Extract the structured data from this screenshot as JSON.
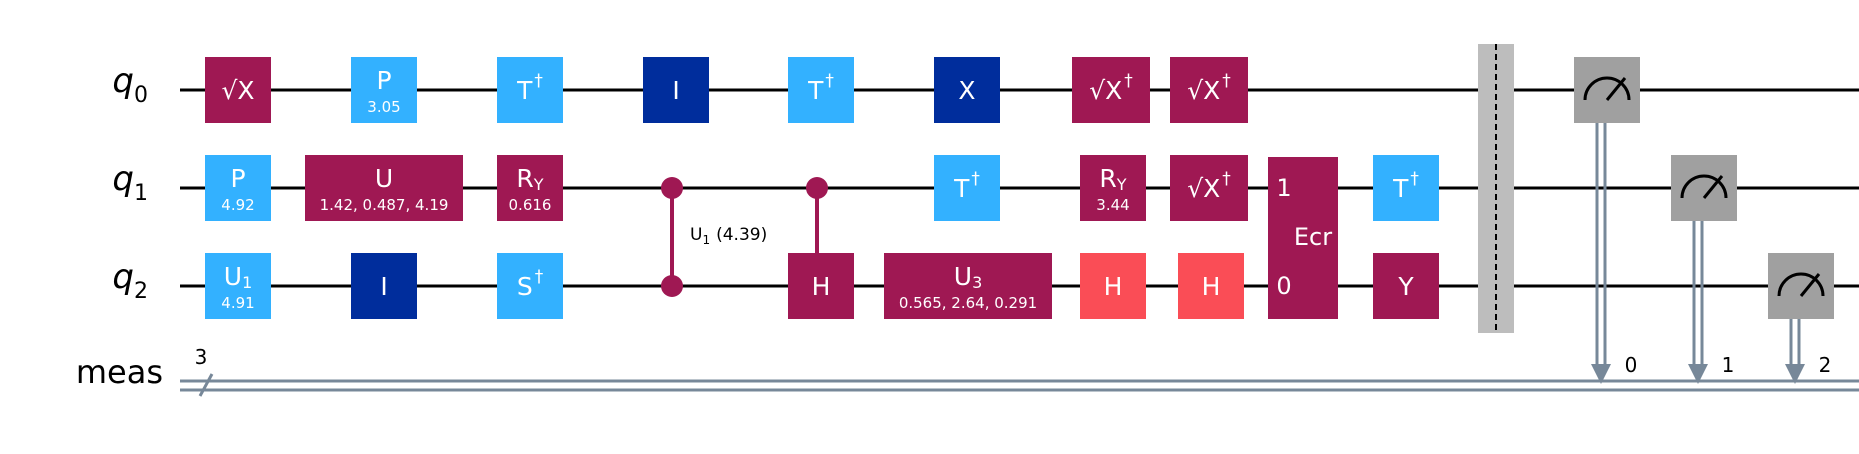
{
  "colors": {
    "magenta": "#9F1853",
    "lightblue": "#33B1FF",
    "darkblue": "#002D9C",
    "red": "#FA4D56",
    "gray": "#A0A0A0",
    "barrier": "#BDBDBD",
    "classical": "#778899"
  },
  "qubits": [
    {
      "label": "q",
      "sub": "0"
    },
    {
      "label": "q",
      "sub": "1"
    },
    {
      "label": "q",
      "sub": "2"
    }
  ],
  "classical_register": {
    "label": "meas",
    "width": "3"
  },
  "gates": [
    {
      "id": "sx-q0",
      "wire": 0,
      "color": "magenta",
      "text": "√X",
      "sup": ""
    },
    {
      "id": "p-q0",
      "wire": 0,
      "color": "lightblue",
      "text": "P",
      "param": "3.05"
    },
    {
      "id": "tdg-q0-a",
      "wire": 0,
      "color": "lightblue",
      "text": "T",
      "sup": "†"
    },
    {
      "id": "id-q0",
      "wire": 0,
      "color": "darkblue",
      "text": "I"
    },
    {
      "id": "tdg-q0-b",
      "wire": 0,
      "color": "lightblue",
      "text": "T",
      "sup": "†"
    },
    {
      "id": "x-q0",
      "wire": 0,
      "color": "darkblue",
      "text": "X"
    },
    {
      "id": "sxdg-q0-a",
      "wire": 0,
      "color": "magenta",
      "text": "√X",
      "sup": "†"
    },
    {
      "id": "sxdg-q0-b",
      "wire": 0,
      "color": "magenta",
      "text": "√X",
      "sup": "†"
    },
    {
      "id": "p-q1",
      "wire": 1,
      "color": "lightblue",
      "text": "P",
      "param": "4.92"
    },
    {
      "id": "u-q1",
      "wire": 1,
      "color": "magenta",
      "text": "U",
      "param": "1.42, 0.487, 4.19"
    },
    {
      "id": "ry-q1-a",
      "wire": 1,
      "color": "magenta",
      "text": "R",
      "sub": "Y",
      "param": "0.616"
    },
    {
      "id": "tdg-q1-a",
      "wire": 1,
      "color": "lightblue",
      "text": "T",
      "sup": "†"
    },
    {
      "id": "ry-q1-b",
      "wire": 1,
      "color": "magenta",
      "text": "R",
      "sub": "Y",
      "param": "3.44"
    },
    {
      "id": "sxdg-q1",
      "wire": 1,
      "color": "magenta",
      "text": "√X",
      "sup": "†"
    },
    {
      "id": "tdg-q1-b",
      "wire": 1,
      "color": "lightblue",
      "text": "T",
      "sup": "†"
    },
    {
      "id": "u1-q2",
      "wire": 2,
      "color": "lightblue",
      "text": "U",
      "sub": "1",
      "param": "4.91"
    },
    {
      "id": "id-q2",
      "wire": 2,
      "color": "darkblue",
      "text": "I"
    },
    {
      "id": "sdg-q2",
      "wire": 2,
      "color": "lightblue",
      "text": "S",
      "sup": "†"
    },
    {
      "id": "h-q2-a",
      "wire": 2,
      "color": "magenta",
      "text": "H"
    },
    {
      "id": "u3-q2",
      "wire": 2,
      "color": "magenta",
      "text": "U",
      "sub": "3",
      "param": "0.565, 2.64, 0.291"
    },
    {
      "id": "h-q2-b",
      "wire": 2,
      "color": "red",
      "text": "H"
    },
    {
      "id": "h-q2-c",
      "wire": 2,
      "color": "red",
      "text": "H"
    },
    {
      "id": "y-q2",
      "wire": 2,
      "color": "magenta",
      "text": "Y"
    }
  ],
  "cu1": {
    "label": "U",
    "sub": "1",
    "param": "(4.39)",
    "wires": [
      1,
      2
    ]
  },
  "ch": {
    "control": 1,
    "target": 2
  },
  "ecr": {
    "label": "Ecr",
    "port_top": "1",
    "port_bottom": "0",
    "wires": [
      1,
      2
    ]
  },
  "measurements": [
    {
      "qubit": 0,
      "bit": "0"
    },
    {
      "qubit": 1,
      "bit": "1"
    },
    {
      "qubit": 2,
      "bit": "2"
    }
  ]
}
